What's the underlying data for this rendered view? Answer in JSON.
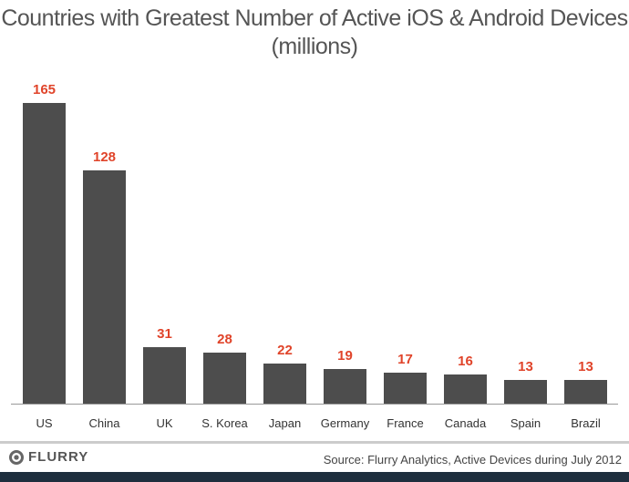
{
  "chart_data": {
    "type": "bar",
    "title": "Countries with Greatest Number of Active iOS & Android Devices",
    "subtitle": "(millions)",
    "categories": [
      "US",
      "China",
      "UK",
      "S. Korea",
      "Japan",
      "Germany",
      "France",
      "Canada",
      "Spain",
      "Brazil"
    ],
    "values": [
      165,
      128,
      31,
      28,
      22,
      19,
      17,
      16,
      13,
      13
    ],
    "ylim": [
      0,
      165
    ],
    "grid": false,
    "bar_color": "#4d4d4d",
    "label_color": "#e0442a"
  },
  "footer": {
    "logo": "FLURRY",
    "source": "Source: Flurry Analytics, Active Devices during July 2012"
  }
}
